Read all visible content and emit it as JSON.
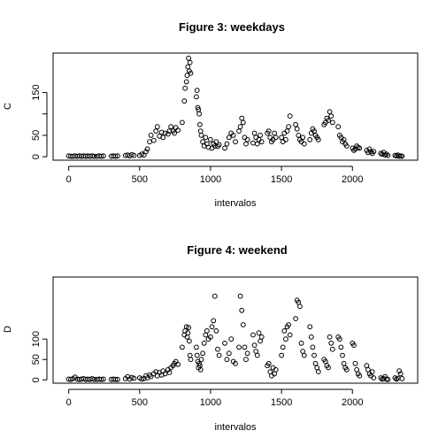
{
  "chart_data": [
    {
      "type": "scatter",
      "title": "Figure 3: weekdays",
      "xlabel": "intervalos",
      "ylabel": "C",
      "xlim": [
        -110,
        2460
      ],
      "ylim": [
        -8,
        242
      ],
      "xticks": [
        0,
        500,
        1000,
        1500,
        2000
      ],
      "yticks": [
        0,
        50,
        100,
        150
      ],
      "ytick_labels": [
        "0",
        "50",
        "",
        "150"
      ],
      "points": [
        [
          0,
          2
        ],
        [
          15,
          1
        ],
        [
          30,
          1
        ],
        [
          45,
          2
        ],
        [
          60,
          1
        ],
        [
          75,
          2
        ],
        [
          90,
          1
        ],
        [
          105,
          2
        ],
        [
          120,
          1
        ],
        [
          135,
          2
        ],
        [
          150,
          1
        ],
        [
          165,
          2
        ],
        [
          180,
          1
        ],
        [
          200,
          1
        ],
        [
          215,
          2
        ],
        [
          230,
          1
        ],
        [
          245,
          2
        ],
        [
          300,
          1
        ],
        [
          315,
          2
        ],
        [
          330,
          1
        ],
        [
          345,
          2
        ],
        [
          400,
          3
        ],
        [
          415,
          4
        ],
        [
          430,
          2
        ],
        [
          445,
          5
        ],
        [
          460,
          3
        ],
        [
          500,
          3
        ],
        [
          515,
          6
        ],
        [
          530,
          4
        ],
        [
          545,
          12
        ],
        [
          555,
          18
        ],
        [
          570,
          35
        ],
        [
          580,
          50
        ],
        [
          600,
          38
        ],
        [
          615,
          60
        ],
        [
          625,
          70
        ],
        [
          640,
          48
        ],
        [
          655,
          57
        ],
        [
          665,
          45
        ],
        [
          680,
          55
        ],
        [
          700,
          53
        ],
        [
          710,
          60
        ],
        [
          720,
          70
        ],
        [
          735,
          60
        ],
        [
          745,
          55
        ],
        [
          755,
          68
        ],
        [
          770,
          62
        ],
        [
          800,
          80
        ],
        [
          815,
          130
        ],
        [
          820,
          160
        ],
        [
          830,
          175
        ],
        [
          835,
          190
        ],
        [
          840,
          210
        ],
        [
          845,
          230
        ],
        [
          850,
          200
        ],
        [
          855,
          220
        ],
        [
          860,
          195
        ],
        [
          900,
          140
        ],
        [
          905,
          155
        ],
        [
          910,
          115
        ],
        [
          915,
          110
        ],
        [
          920,
          100
        ],
        [
          925,
          75
        ],
        [
          930,
          60
        ],
        [
          935,
          50
        ],
        [
          945,
          35
        ],
        [
          955,
          25
        ],
        [
          965,
          45
        ],
        [
          975,
          30
        ],
        [
          985,
          22
        ],
        [
          1000,
          40
        ],
        [
          1010,
          20
        ],
        [
          1020,
          30
        ],
        [
          1030,
          25
        ],
        [
          1040,
          35
        ],
        [
          1050,
          24
        ],
        [
          1060,
          28
        ],
        [
          1100,
          20
        ],
        [
          1115,
          30
        ],
        [
          1130,
          45
        ],
        [
          1145,
          55
        ],
        [
          1160,
          50
        ],
        [
          1175,
          35
        ],
        [
          1200,
          60
        ],
        [
          1210,
          70
        ],
        [
          1220,
          90
        ],
        [
          1230,
          80
        ],
        [
          1240,
          45
        ],
        [
          1250,
          30
        ],
        [
          1260,
          40
        ],
        [
          1300,
          32
        ],
        [
          1310,
          55
        ],
        [
          1320,
          45
        ],
        [
          1330,
          30
        ],
        [
          1340,
          40
        ],
        [
          1350,
          50
        ],
        [
          1360,
          35
        ],
        [
          1400,
          55
        ],
        [
          1410,
          60
        ],
        [
          1420,
          45
        ],
        [
          1430,
          35
        ],
        [
          1440,
          40
        ],
        [
          1450,
          55
        ],
        [
          1460,
          45
        ],
        [
          1500,
          45
        ],
        [
          1510,
          35
        ],
        [
          1520,
          55
        ],
        [
          1530,
          40
        ],
        [
          1540,
          60
        ],
        [
          1550,
          70
        ],
        [
          1560,
          95
        ],
        [
          1600,
          75
        ],
        [
          1610,
          65
        ],
        [
          1620,
          50
        ],
        [
          1630,
          40
        ],
        [
          1640,
          35
        ],
        [
          1650,
          45
        ],
        [
          1660,
          30
        ],
        [
          1700,
          40
        ],
        [
          1710,
          55
        ],
        [
          1720,
          65
        ],
        [
          1730,
          60
        ],
        [
          1740,
          50
        ],
        [
          1750,
          45
        ],
        [
          1760,
          40
        ],
        [
          1800,
          75
        ],
        [
          1810,
          80
        ],
        [
          1820,
          90
        ],
        [
          1830,
          85
        ],
        [
          1840,
          105
        ],
        [
          1850,
          95
        ],
        [
          1860,
          80
        ],
        [
          1900,
          70
        ],
        [
          1910,
          50
        ],
        [
          1920,
          45
        ],
        [
          1930,
          35
        ],
        [
          1940,
          40
        ],
        [
          1950,
          30
        ],
        [
          1960,
          25
        ],
        [
          2000,
          20
        ],
        [
          2010,
          15
        ],
        [
          2020,
          18
        ],
        [
          2030,
          25
        ],
        [
          2040,
          22
        ],
        [
          2050,
          20
        ],
        [
          2100,
          15
        ],
        [
          2110,
          10
        ],
        [
          2120,
          18
        ],
        [
          2130,
          12
        ],
        [
          2140,
          8
        ],
        [
          2150,
          12
        ],
        [
          2200,
          8
        ],
        [
          2210,
          6
        ],
        [
          2220,
          10
        ],
        [
          2230,
          4
        ],
        [
          2240,
          6
        ],
        [
          2250,
          3
        ],
        [
          2300,
          3
        ],
        [
          2310,
          2
        ],
        [
          2320,
          4
        ],
        [
          2330,
          1
        ],
        [
          2340,
          2
        ],
        [
          2350,
          1
        ]
      ]
    },
    {
      "type": "scatter",
      "title": "Figure 4: weekend",
      "xlabel": "intervalos",
      "ylabel": "D",
      "xlim": [
        -110,
        2460
      ],
      "ylim": [
        -8,
        252
      ],
      "xticks": [
        0,
        500,
        1000,
        1500,
        2000
      ],
      "yticks": [
        0,
        50,
        100
      ],
      "ytick_labels": [
        "0",
        "50",
        "100"
      ],
      "points": [
        [
          0,
          2
        ],
        [
          15,
          1
        ],
        [
          30,
          3
        ],
        [
          45,
          7
        ],
        [
          60,
          2
        ],
        [
          75,
          1
        ],
        [
          90,
          2
        ],
        [
          105,
          3
        ],
        [
          120,
          1
        ],
        [
          135,
          2
        ],
        [
          150,
          1
        ],
        [
          165,
          3
        ],
        [
          180,
          1
        ],
        [
          200,
          1
        ],
        [
          215,
          2
        ],
        [
          230,
          1
        ],
        [
          245,
          2
        ],
        [
          300,
          1
        ],
        [
          315,
          2
        ],
        [
          330,
          1
        ],
        [
          345,
          1
        ],
        [
          400,
          3
        ],
        [
          415,
          8
        ],
        [
          430,
          2
        ],
        [
          445,
          6
        ],
        [
          460,
          4
        ],
        [
          500,
          5
        ],
        [
          515,
          2
        ],
        [
          530,
          3
        ],
        [
          545,
          10
        ],
        [
          555,
          5
        ],
        [
          570,
          12
        ],
        [
          580,
          8
        ],
        [
          600,
          15
        ],
        [
          615,
          20
        ],
        [
          625,
          10
        ],
        [
          640,
          18
        ],
        [
          655,
          12
        ],
        [
          665,
          22
        ],
        [
          680,
          15
        ],
        [
          700,
          25
        ],
        [
          710,
          18
        ],
        [
          720,
          30
        ],
        [
          735,
          35
        ],
        [
          745,
          40
        ],
        [
          755,
          45
        ],
        [
          770,
          38
        ],
        [
          800,
          80
        ],
        [
          815,
          110
        ],
        [
          820,
          120
        ],
        [
          830,
          130
        ],
        [
          835,
          105
        ],
        [
          840,
          115
        ],
        [
          845,
          128
        ],
        [
          850,
          95
        ],
        [
          855,
          60
        ],
        [
          860,
          50
        ],
        [
          900,
          80
        ],
        [
          905,
          60
        ],
        [
          910,
          45
        ],
        [
          915,
          30
        ],
        [
          920,
          40
        ],
        [
          925,
          35
        ],
        [
          930,
          25
        ],
        [
          935,
          50
        ],
        [
          945,
          65
        ],
        [
          955,
          90
        ],
        [
          965,
          110
        ],
        [
          975,
          120
        ],
        [
          985,
          100
        ],
        [
          1000,
          105
        ],
        [
          1010,
          130
        ],
        [
          1020,
          145
        ],
        [
          1030,
          205
        ],
        [
          1040,
          120
        ],
        [
          1050,
          75
        ],
        [
          1060,
          60
        ],
        [
          1100,
          90
        ],
        [
          1115,
          50
        ],
        [
          1130,
          65
        ],
        [
          1145,
          100
        ],
        [
          1160,
          45
        ],
        [
          1175,
          40
        ],
        [
          1200,
          80
        ],
        [
          1210,
          205
        ],
        [
          1220,
          170
        ],
        [
          1230,
          135
        ],
        [
          1240,
          80
        ],
        [
          1250,
          50
        ],
        [
          1260,
          65
        ],
        [
          1300,
          110
        ],
        [
          1310,
          85
        ],
        [
          1320,
          70
        ],
        [
          1330,
          60
        ],
        [
          1340,
          115
        ],
        [
          1350,
          95
        ],
        [
          1360,
          105
        ],
        [
          1400,
          35
        ],
        [
          1410,
          40
        ],
        [
          1420,
          20
        ],
        [
          1430,
          10
        ],
        [
          1440,
          30
        ],
        [
          1450,
          15
        ],
        [
          1460,
          25
        ],
        [
          1500,
          60
        ],
        [
          1510,
          80
        ],
        [
          1520,
          120
        ],
        [
          1530,
          100
        ],
        [
          1540,
          130
        ],
        [
          1550,
          135
        ],
        [
          1560,
          110
        ],
        [
          1600,
          150
        ],
        [
          1610,
          195
        ],
        [
          1620,
          190
        ],
        [
          1630,
          180
        ],
        [
          1640,
          90
        ],
        [
          1650,
          70
        ],
        [
          1660,
          60
        ],
        [
          1700,
          130
        ],
        [
          1710,
          105
        ],
        [
          1720,
          80
        ],
        [
          1730,
          60
        ],
        [
          1740,
          40
        ],
        [
          1750,
          30
        ],
        [
          1760,
          20
        ],
        [
          1800,
          50
        ],
        [
          1810,
          45
        ],
        [
          1820,
          35
        ],
        [
          1830,
          30
        ],
        [
          1840,
          105
        ],
        [
          1850,
          90
        ],
        [
          1860,
          75
        ],
        [
          1900,
          105
        ],
        [
          1910,
          100
        ],
        [
          1920,
          80
        ],
        [
          1930,
          60
        ],
        [
          1940,
          40
        ],
        [
          1950,
          30
        ],
        [
          1960,
          25
        ],
        [
          2000,
          90
        ],
        [
          2010,
          85
        ],
        [
          2020,
          40
        ],
        [
          2030,
          25
        ],
        [
          2040,
          15
        ],
        [
          2050,
          10
        ],
        [
          2100,
          35
        ],
        [
          2110,
          25
        ],
        [
          2120,
          15
        ],
        [
          2130,
          10
        ],
        [
          2140,
          20
        ],
        [
          2150,
          5
        ],
        [
          2200,
          5
        ],
        [
          2210,
          2
        ],
        [
          2220,
          3
        ],
        [
          2230,
          8
        ],
        [
          2240,
          2
        ],
        [
          2250,
          1
        ],
        [
          2300,
          5
        ],
        [
          2310,
          2
        ],
        [
          2320,
          4
        ],
        [
          2330,
          22
        ],
        [
          2340,
          15
        ],
        [
          2350,
          3
        ]
      ]
    }
  ]
}
